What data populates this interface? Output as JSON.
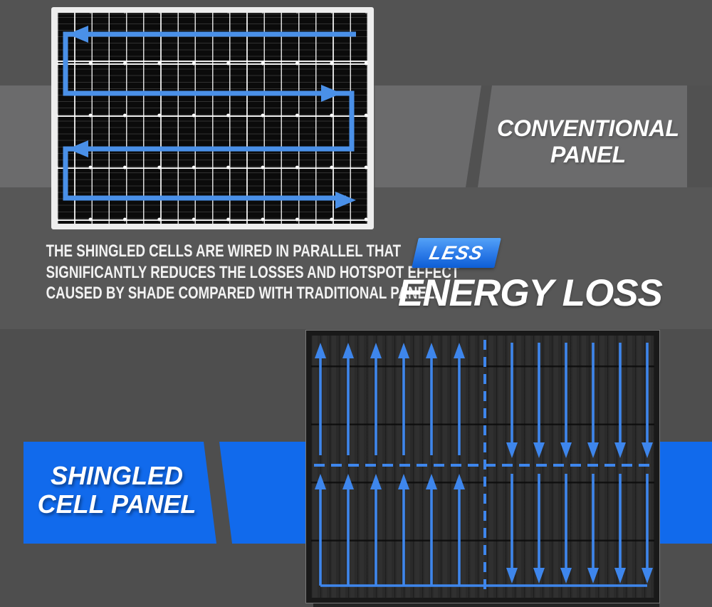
{
  "labels": {
    "conventional": {
      "line1": "CONVENTIONAL",
      "line2": "PANEL"
    },
    "shingled": {
      "line1": "SHINGLED",
      "line2": "CELL PANEL"
    },
    "benefit_badge": "LESS",
    "benefit_headline": "ENERGY LOSS"
  },
  "description": {
    "line1": "THE SHINGLED CELLS ARE WIRED IN PARALLEL THAT",
    "line2": "SIGNIFICANTLY REDUCES THE LOSSES AND HOTSPOT EFFECT",
    "line3": "CAUSED BY SHADE COMPARED WITH TRADITIONAL PANEL."
  },
  "colors": {
    "background_gray": "#515151",
    "band_gray": "#6b6b6c",
    "band_blue": "#116aec",
    "badge_gradient_top": "#54a2f7",
    "badge_gradient_bottom": "#0d5ed5",
    "flow_arrow_blue": "#4a90e8",
    "parallel_arrow_blue": "#3e86ec",
    "panel_frame_white": "#ededed",
    "conventional_cell_black": "#0b0b0b",
    "shingled_panel_dark": "#2a2a2a",
    "text_white": "#ffffff"
  },
  "diagrams": {
    "conventional_panel": {
      "type": "series-wiring-diagram",
      "flow": "serpentine",
      "arrow_direction_sequence": [
        "left",
        "right",
        "left",
        "right"
      ]
    },
    "shingled_panel": {
      "type": "parallel-wiring-diagram",
      "flow": "parallel",
      "quadrant_arrows": {
        "top_left": {
          "count": 6,
          "direction": "up"
        },
        "top_right": {
          "count": 6,
          "direction": "down"
        },
        "bottom_left": {
          "count": 6,
          "direction": "up"
        },
        "bottom_right": {
          "count": 6,
          "direction": "down"
        }
      }
    }
  }
}
